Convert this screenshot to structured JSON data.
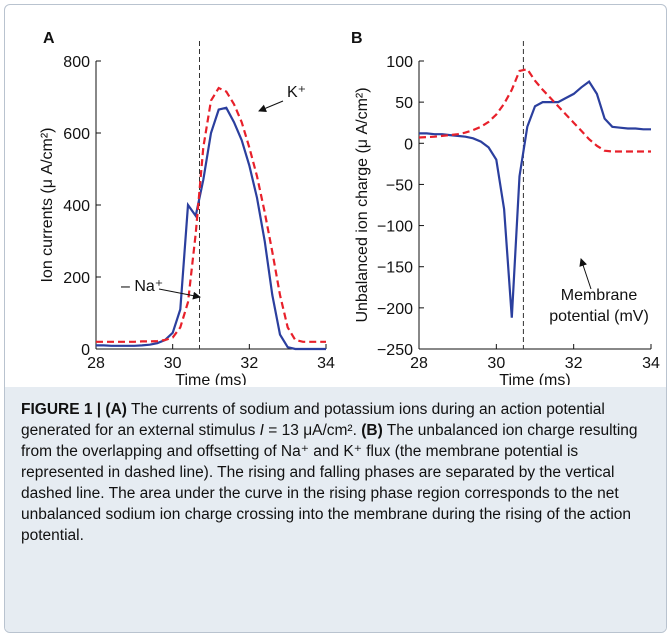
{
  "chart_data": [
    {
      "type": "line",
      "panel": "A",
      "xlabel": "Time (ms)",
      "ylabel": "Ion currents (μ A/cm²)",
      "xlim": [
        28,
        34
      ],
      "xticks": [
        28,
        30,
        32,
        34
      ],
      "ylim": [
        0,
        800
      ],
      "yticks": [
        0,
        200,
        400,
        600,
        800
      ],
      "vline": 30.7,
      "x": [
        28,
        28.2,
        28.4,
        28.6,
        28.8,
        29,
        29.2,
        29.4,
        29.6,
        29.8,
        30,
        30.2,
        30.4,
        30.6,
        30.8,
        31,
        31.2,
        31.4,
        31.6,
        31.8,
        32,
        32.2,
        32.4,
        32.6,
        32.8,
        33,
        33.2,
        33.4,
        33.6,
        33.8,
        34
      ],
      "series": [
        {
          "color": "#2b3f9e",
          "dash": false,
          "values": [
            10,
            10,
            9,
            9,
            9,
            9,
            10,
            12,
            16,
            25,
            45,
            110,
            400,
            370,
            470,
            600,
            665,
            670,
            630,
            580,
            510,
            420,
            300,
            150,
            40,
            5,
            0,
            0,
            0,
            0,
            0
          ]
        },
        {
          "color": "#e8202a",
          "dash": true,
          "values": [
            20,
            20,
            20,
            20,
            20,
            20,
            21,
            21,
            22,
            25,
            32,
            60,
            130,
            320,
            560,
            690,
            725,
            715,
            680,
            630,
            560,
            480,
            380,
            270,
            150,
            60,
            25,
            20,
            20,
            20,
            20
          ]
        }
      ],
      "annotations": [
        "– Na⁺",
        "K⁺"
      ]
    },
    {
      "type": "line",
      "panel": "B",
      "xlabel": "Time (ms)",
      "ylabel": "Unbalanced ion charge (μ A/cm²)",
      "xlim": [
        28,
        34
      ],
      "xticks": [
        28,
        30,
        32,
        34
      ],
      "ylim": [
        -250,
        100
      ],
      "yticks": [
        {
          "value": -250,
          "label": "−250"
        },
        {
          "value": -200,
          "label": "−200"
        },
        {
          "value": -150,
          "label": "−150"
        },
        {
          "value": -100,
          "label": "−100"
        },
        {
          "value": -50,
          "label": "−50"
        },
        0,
        50,
        100
      ],
      "vline": 30.7,
      "x": [
        28,
        28.2,
        28.4,
        28.6,
        28.8,
        29,
        29.2,
        29.4,
        29.6,
        29.8,
        30,
        30.2,
        30.4,
        30.6,
        30.8,
        31,
        31.2,
        31.4,
        31.6,
        31.8,
        32,
        32.2,
        32.4,
        32.6,
        32.8,
        33,
        33.2,
        33.4,
        33.6,
        33.8,
        34
      ],
      "series": [
        {
          "color": "#2b3f9e",
          "dash": false,
          "values": [
            12,
            12,
            11,
            11,
            10,
            9,
            8,
            6,
            2,
            -5,
            -20,
            -80,
            -212,
            -40,
            20,
            45,
            50,
            50,
            50,
            55,
            60,
            68,
            75,
            60,
            30,
            20,
            19,
            18,
            18,
            17,
            17
          ]
        },
        {
          "color": "#e8202a",
          "dash": true,
          "values": [
            7,
            7.5,
            8,
            9,
            10,
            11,
            13,
            16,
            20,
            26,
            35,
            48,
            65,
            88,
            90,
            76,
            65,
            55,
            45,
            35,
            25,
            15,
            5,
            -3,
            -9,
            -10,
            -10,
            -10,
            -10,
            -10,
            -10
          ]
        }
      ],
      "annotations": [
        "Membrane",
        "potential (mV)"
      ]
    }
  ],
  "caption": [
    "FIGURE 1 | (A)",
    " The currents of sodium and potassium ions during an action potential generated for an external stimulus ",
    "I",
    " = 13 μA/cm². ",
    "(B)",
    " The unbalanced ion charge resulting from the overlapping and offsetting of Na⁺ and K⁺ flux (the membrane potential is represented in dashed line). The rising and falling phases are separated by the vertical dashed line. The area under the curve in the rising phase region corresponds to the net unbalanced sodium ion charge crossing into the membrane during the rising of the action potential."
  ]
}
